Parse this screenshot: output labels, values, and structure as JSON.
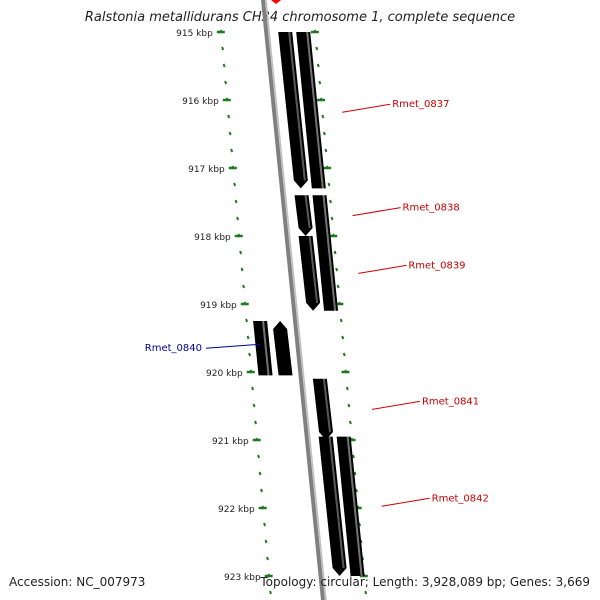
{
  "title": "Ralstonia metallidurans CH34 chromosome 1, complete sequence",
  "footer": {
    "accession": "Accession: NC_007973",
    "summary": "Topology: circular; Length: 3,928,089 bp; Genes: 3,669"
  },
  "colors": {
    "backbone": "#808080",
    "tick": "#1f7a1f",
    "forward_label": "#cc0000",
    "reverse_label": "#000099"
  },
  "ticks": [
    "915 kbp",
    "916 kbp",
    "917 kbp",
    "918 kbp",
    "919 kbp",
    "920 kbp",
    "921 kbp",
    "922 kbp",
    "923 kbp"
  ],
  "genes": [
    {
      "name": "Rmet_0837",
      "strand": "forward",
      "start_kbp": 915.0,
      "end_kbp": 917.3,
      "cds_color": "#ff0000",
      "product_color": "#4b3f8f"
    },
    {
      "name": "Rmet_0838",
      "strand": "forward",
      "start_kbp": 917.4,
      "end_kbp": 918.0,
      "cds_color": "#ff0000",
      "product_color": "#707070"
    },
    {
      "name": "Rmet_0839",
      "strand": "forward",
      "start_kbp": 918.0,
      "end_kbp": 919.1,
      "cds_color": "#ff0000",
      "product_color": "#00ffff"
    },
    {
      "name": "Rmet_0840",
      "strand": "reverse",
      "start_kbp": 919.25,
      "end_kbp": 920.05,
      "cds_color": "#0000ff",
      "product_color": "#ff9900"
    },
    {
      "name": "Rmet_0841",
      "strand": "forward",
      "start_kbp": 920.1,
      "end_kbp": 921.0,
      "cds_color": "#ff0000",
      "product_color": ""
    },
    {
      "name": "Rmet_0842",
      "strand": "forward",
      "start_kbp": 920.95,
      "end_kbp": 923.0,
      "cds_color": "#ff0000",
      "product_color": "#00ffff"
    }
  ]
}
